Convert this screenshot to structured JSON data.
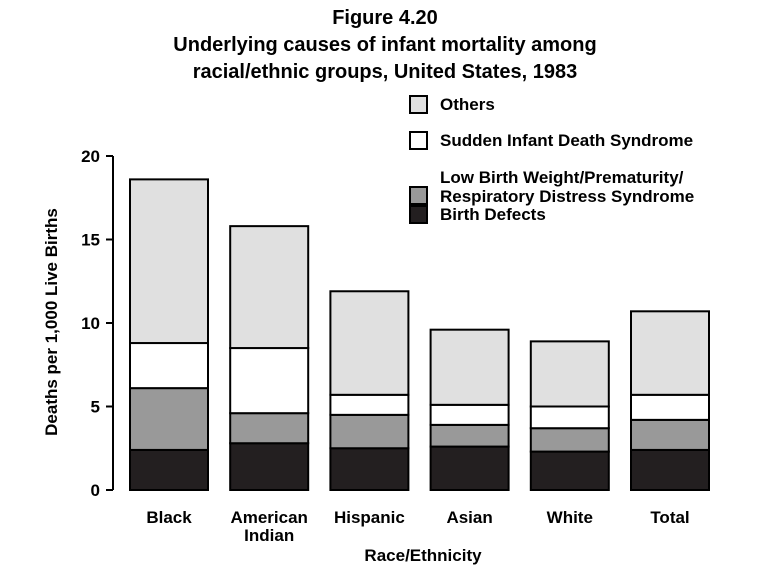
{
  "chart_data": {
    "type": "bar",
    "stacked": true,
    "title": "Figure 4.20",
    "subtitle_lines": [
      "Underlying causes of infant mortality among",
      "racial/ethnic groups, United States, 1983"
    ],
    "xlabel": "Race/Ethnicity",
    "ylabel": "Deaths per 1,000 Live Births",
    "ylim": [
      0,
      20
    ],
    "yticks": [
      "0",
      "5",
      "10",
      "15",
      "20"
    ],
    "categories": [
      [
        "Black"
      ],
      [
        "American",
        "Indian"
      ],
      [
        "Hispanic"
      ],
      [
        "Asian"
      ],
      [
        "White"
      ],
      [
        "Total"
      ]
    ],
    "series": [
      {
        "name": "Birth Defects",
        "legend_lines": [
          "Birth Defects"
        ],
        "color": "#231f20",
        "values": [
          2.4,
          2.8,
          2.5,
          2.6,
          2.3,
          2.4
        ]
      },
      {
        "name": "Low Birth Weight/Prematurity/ Respiratory Distress Syndrome",
        "legend_lines": [
          "Low Birth Weight/Prematurity/",
          "Respiratory Distress Syndrome"
        ],
        "color": "#999999",
        "values": [
          3.7,
          1.8,
          2.0,
          1.3,
          1.4,
          1.8
        ]
      },
      {
        "name": "Sudden Infant Death Syndrome",
        "legend_lines": [
          "Sudden Infant Death Syndrome"
        ],
        "color": "#ffffff",
        "values": [
          2.7,
          3.9,
          1.2,
          1.2,
          1.3,
          1.5
        ]
      },
      {
        "name": "Others",
        "legend_lines": [
          "Others"
        ],
        "color": "#e0e0e0",
        "values": [
          9.8,
          7.3,
          6.2,
          4.5,
          3.9,
          5.0
        ]
      }
    ],
    "legend_order": [
      "Others",
      "Sudden Infant Death Syndrome",
      "Low Birth Weight/Prematurity/ Respiratory Distress Syndrome",
      "Birth Defects"
    ],
    "legend_position": "top-right",
    "grid": false
  }
}
